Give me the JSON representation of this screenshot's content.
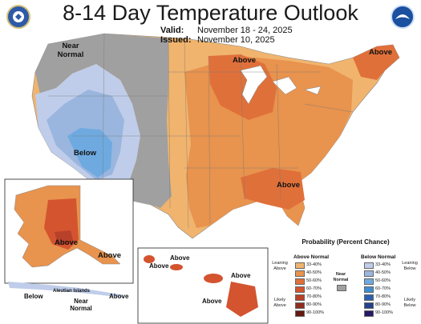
{
  "title": "8-14 Day Temperature Outlook",
  "valid_label": "Valid:",
  "valid_value": "November 18 - 24, 2025",
  "issued_label": "Issued:",
  "issued_value": "November 10, 2025",
  "noaa_logo_text": "NOAA",
  "map_labels": {
    "near_normal_west": "Near Normal",
    "below_sw": "Below",
    "above_midwest": "Above",
    "above_northeast": "Above",
    "above_southeast": "Above",
    "above_alaska": "Above",
    "above_ak_panhandle": "Above",
    "below_aleutian": "Below",
    "aleutian_islands": "Aleutian Islands",
    "near_normal_aleutian": "Near Normal",
    "above_aleutian_east": "Above",
    "above_hi_1": "Above",
    "above_hi_2": "Above",
    "above_hi_3": "Above",
    "above_hi_4": "Above"
  },
  "legend": {
    "title": "Probability (Percent Chance)",
    "above_header": "Above Normal",
    "below_header": "Below Normal",
    "near_label": "Near Normal",
    "leaning_above": "Leaning Above",
    "likely_above": "Likely Above",
    "leaning_below": "Leaning Below",
    "likely_below": "Likely Below",
    "bins": [
      "33-40%",
      "40-50%",
      "50-60%",
      "60-70%",
      "70-80%",
      "80-90%",
      "90-100%"
    ],
    "above_colors": [
      "#f0b46e",
      "#e8934e",
      "#e0703a",
      "#d3542f",
      "#b8412a",
      "#8f2c1f",
      "#641a12"
    ],
    "below_colors": [
      "#bfcdea",
      "#9ab6de",
      "#6eaae0",
      "#3f8ed0",
      "#2b5fb0",
      "#24418c",
      "#241a66"
    ],
    "near_color": "#a0a0a0"
  }
}
